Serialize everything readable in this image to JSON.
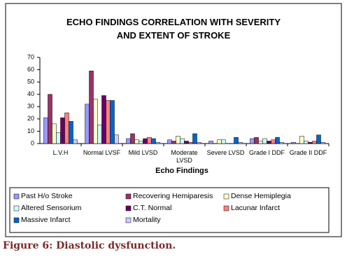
{
  "chart_data": {
    "type": "bar",
    "title": "ECHO FINDINGS CORRELATION WITH SEVERITY AND EXTENT OF STROKE",
    "x_label": "Echo Findings",
    "categories": [
      "L.V.H",
      "Normal LVSF",
      "Mild LVSD",
      "Moderate LVSD",
      "Severe LVSD",
      "Grade I DDF",
      "Grade II DDF"
    ],
    "series": [
      {
        "name": "Past H/o Stroke",
        "color": "#9999ff",
        "values": [
          21,
          32,
          4,
          3,
          2,
          4,
          1
        ]
      },
      {
        "name": "Recovering Hemiparesis",
        "color": "#993366",
        "values": [
          40,
          59,
          8,
          2,
          0,
          5,
          0
        ]
      },
      {
        "name": "Dense Hemiplegia",
        "color": "#ffffcc",
        "values": [
          16,
          36,
          3,
          6,
          3,
          2,
          6
        ]
      },
      {
        "name": "Altered Sensorium",
        "color": "#ccffff",
        "values": [
          9,
          15,
          2,
          4,
          3,
          4,
          2
        ]
      },
      {
        "name": "C.T. Normal",
        "color": "#660066",
        "values": [
          21,
          39,
          4,
          2,
          0,
          2,
          1
        ]
      },
      {
        "name": "Lacunar Infarct",
        "color": "#ff8080",
        "values": [
          25,
          35,
          5,
          1,
          0,
          3,
          2
        ]
      },
      {
        "name": "Massive Infarct",
        "color": "#0066cc",
        "values": [
          18,
          35,
          4,
          8,
          5,
          5,
          7
        ]
      },
      {
        "name": "Mortality",
        "color": "#ccccff",
        "values": [
          3,
          7,
          1,
          1,
          1,
          1,
          1
        ]
      }
    ],
    "ylim": [
      0,
      70
    ],
    "yticks": [
      0,
      10,
      20,
      30,
      40,
      50,
      60,
      70
    ],
    "legend": "bottom"
  },
  "caption": "Figure 6: Diastolic dysfunction."
}
